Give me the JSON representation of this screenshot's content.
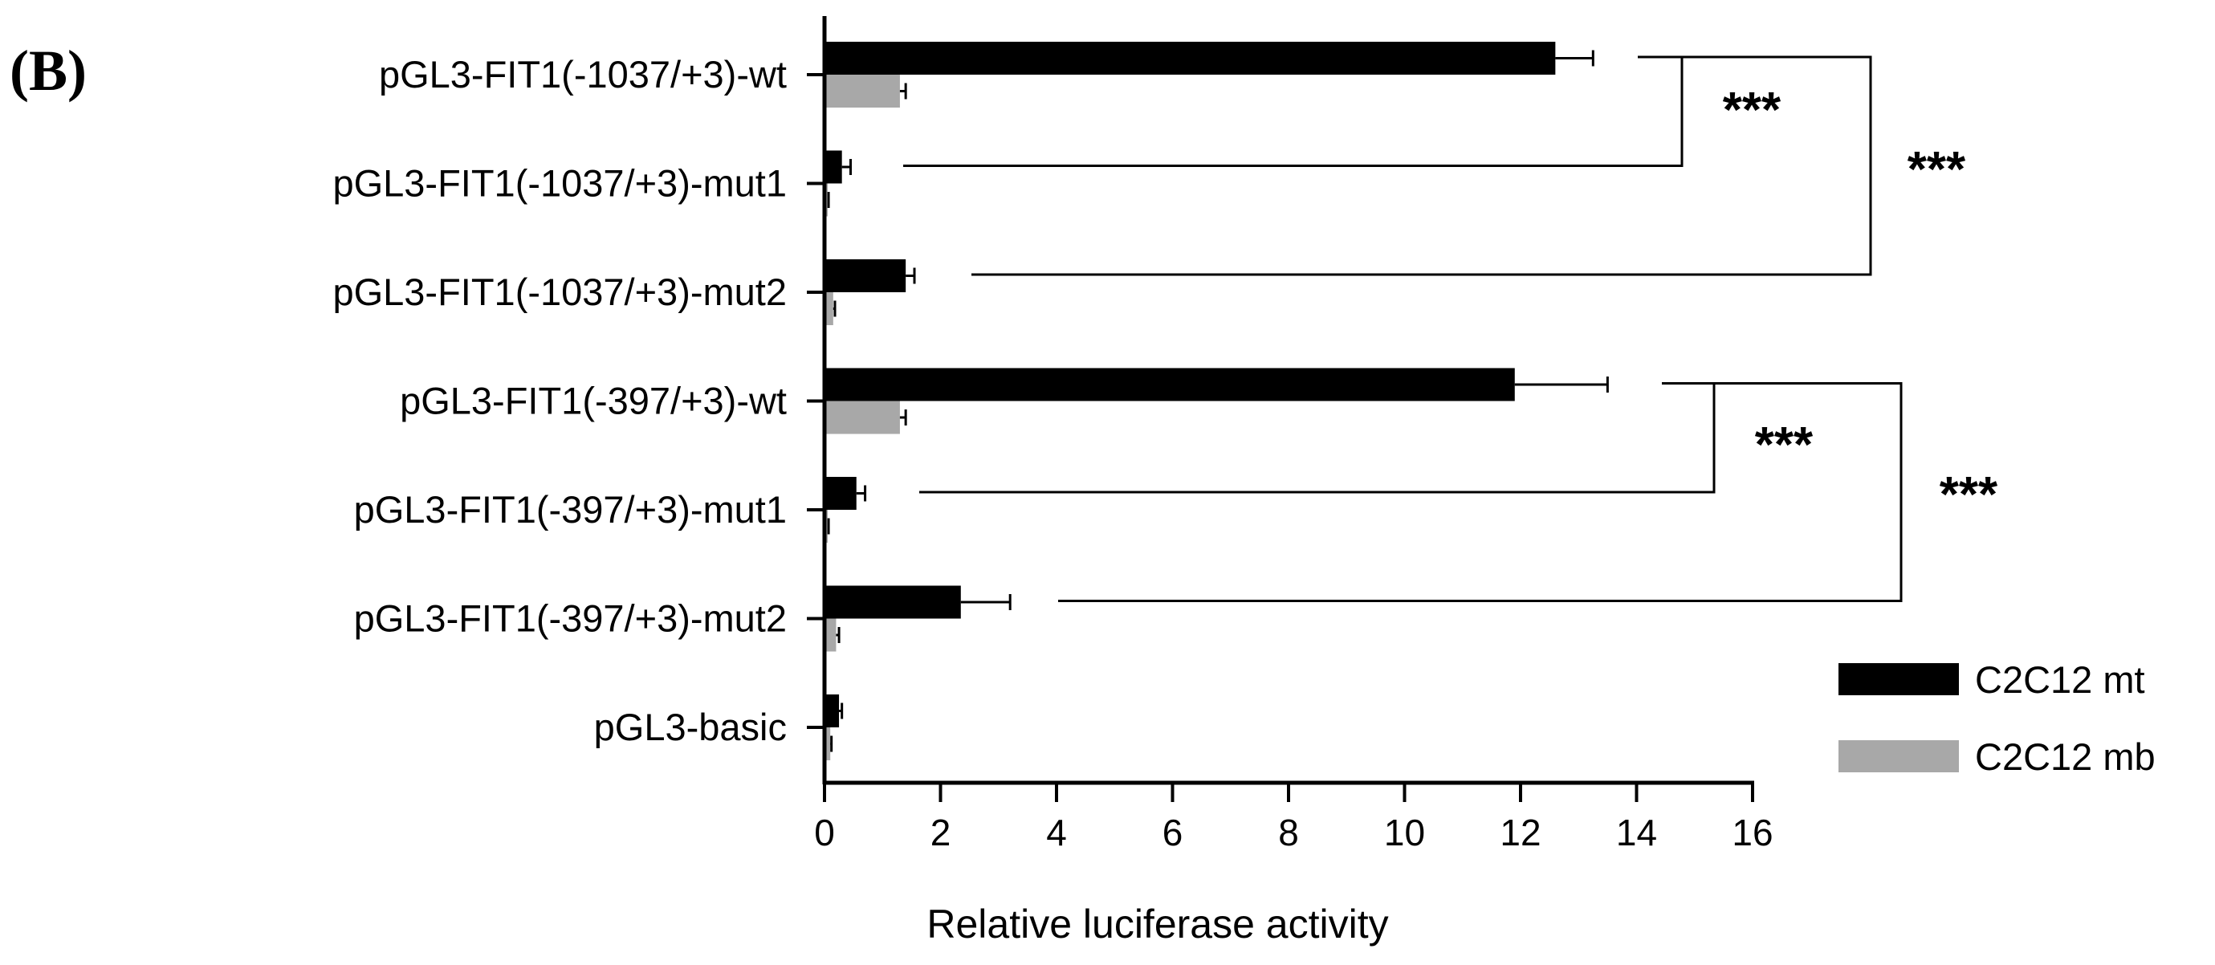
{
  "panel_label": "(B)",
  "colors": {
    "C2C12 mt": "#000000",
    "C2C12 mb": "#a8a8a8",
    "axis": "#000000"
  },
  "chart_data": {
    "type": "bar",
    "orientation": "horizontal",
    "categories": [
      "pGL3-FIT1(-1037/+3)-wt",
      "pGL3-FIT1(-1037/+3)-mut1",
      "pGL3-FIT1(-1037/+3)-mut2",
      "pGL3-FIT1(-397/+3)-wt",
      "pGL3-FIT1(-397/+3)-mut1",
      "pGL3-FIT1(-397/+3)-mut2",
      "pGL3-basic"
    ],
    "series": [
      {
        "name": "C2C12 mt",
        "values": [
          12.6,
          0.3,
          1.4,
          11.9,
          0.55,
          2.35,
          0.25
        ],
        "errors": [
          0.65,
          0.15,
          0.15,
          1.6,
          0.15,
          0.85,
          0.05
        ]
      },
      {
        "name": "C2C12 mb",
        "values": [
          1.3,
          0.05,
          0.15,
          1.3,
          0.05,
          0.2,
          0.1
        ],
        "errors": [
          0.1,
          0.02,
          0.03,
          0.1,
          0.02,
          0.05,
          0.02
        ]
      }
    ],
    "xlabel": "Relative luciferase activity",
    "ylabel": "",
    "xlim": [
      0,
      16
    ],
    "xticks": [
      "0",
      "2",
      "4",
      "6",
      "8",
      "10",
      "12",
      "14",
      "16"
    ],
    "grid": false,
    "legend": {
      "placement": "bottom-right",
      "entries": [
        "C2C12 mt",
        "C2C12 mb"
      ]
    },
    "significance": [
      {
        "label": "***",
        "from": 0,
        "to": 1
      },
      {
        "label": "***",
        "from": 0,
        "to": 2
      },
      {
        "label": "***",
        "from": 3,
        "to": 4
      },
      {
        "label": "***",
        "from": 3,
        "to": 5
      }
    ]
  }
}
